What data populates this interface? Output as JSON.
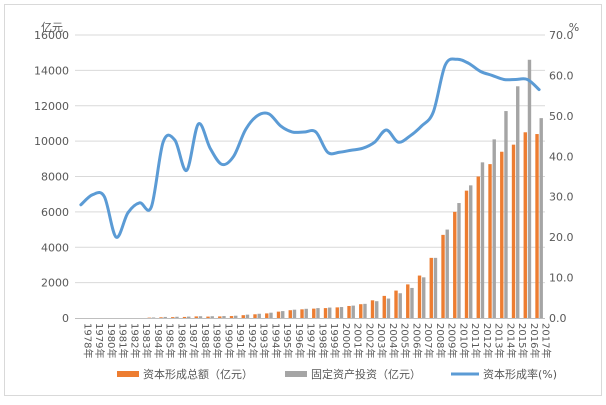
{
  "chart_data": {
    "type": "bar",
    "left_unit": "亿元",
    "right_unit": "%",
    "y_left": {
      "min": 0,
      "max": 16000,
      "ticks": [
        "0",
        "2000",
        "4000",
        "6000",
        "8000",
        "10000",
        "12000",
        "14000",
        "16000"
      ]
    },
    "y_right": {
      "min": 0,
      "max": 70,
      "ticks": [
        "0.0",
        "10.0",
        "20.0",
        "30.0",
        "40.0",
        "50.0",
        "60.0",
        "70.0"
      ]
    },
    "years": [
      "1978年",
      "1979年",
      "1980年",
      "1981年",
      "1982年",
      "1983年",
      "1984年",
      "1985年",
      "1986年",
      "1987年",
      "1988年",
      "1989年",
      "1990年",
      "1991年",
      "1992年",
      "1993年",
      "1994年",
      "1995年",
      "1996年",
      "1997年",
      "1998年",
      "1999年",
      "2000年",
      "2001年",
      "2002年",
      "2003年",
      "2004年",
      "2005年",
      "2006年",
      "2007年",
      "2008年",
      "2009年",
      "2010年",
      "2011年",
      "2012年",
      "2013年",
      "2014年",
      "2015年",
      "2016年",
      "2017年"
    ],
    "series": [
      {
        "name": "资本形成总额（亿元）",
        "type": "bar",
        "axis": "left",
        "color": "#ED7D31",
        "values": [
          0,
          0,
          0,
          0,
          0,
          0,
          20,
          40,
          50,
          60,
          90,
          80,
          90,
          110,
          160,
          210,
          260,
          360,
          440,
          490,
          530,
          560,
          600,
          680,
          780,
          1000,
          1250,
          1550,
          1900,
          2400,
          3400,
          4700,
          6000,
          7200,
          8000,
          8700,
          9400,
          9800,
          10500,
          10400
        ]
      },
      {
        "name": "固定资产投资（亿元）",
        "type": "bar",
        "axis": "left",
        "color": "#A5A5A5",
        "values": [
          0,
          0,
          0,
          0,
          0,
          0,
          30,
          60,
          70,
          80,
          100,
          100,
          110,
          130,
          190,
          240,
          300,
          390,
          470,
          520,
          560,
          590,
          620,
          700,
          800,
          950,
          1100,
          1400,
          1700,
          2300,
          3400,
          5000,
          6500,
          7500,
          8800,
          10100,
          11700,
          13100,
          14600,
          11300
        ]
      },
      {
        "name": "资本形成率(%)",
        "type": "line",
        "axis": "right",
        "color": "#5B9BD5",
        "values": [
          28.0,
          30.5,
          30.0,
          20.0,
          26.0,
          28.5,
          27.5,
          43.5,
          44.0,
          36.5,
          48.0,
          42.0,
          38.0,
          40.0,
          46.5,
          50.0,
          50.5,
          47.5,
          46.0,
          46.0,
          46.0,
          41.0,
          41.0,
          41.5,
          42.0,
          43.5,
          46.5,
          43.5,
          45.0,
          47.5,
          51.0,
          62.5,
          64.0,
          63.0,
          61.0,
          60.0,
          59.0,
          59.0,
          59.0,
          56.5
        ]
      }
    ],
    "legend_position": "bottom"
  }
}
